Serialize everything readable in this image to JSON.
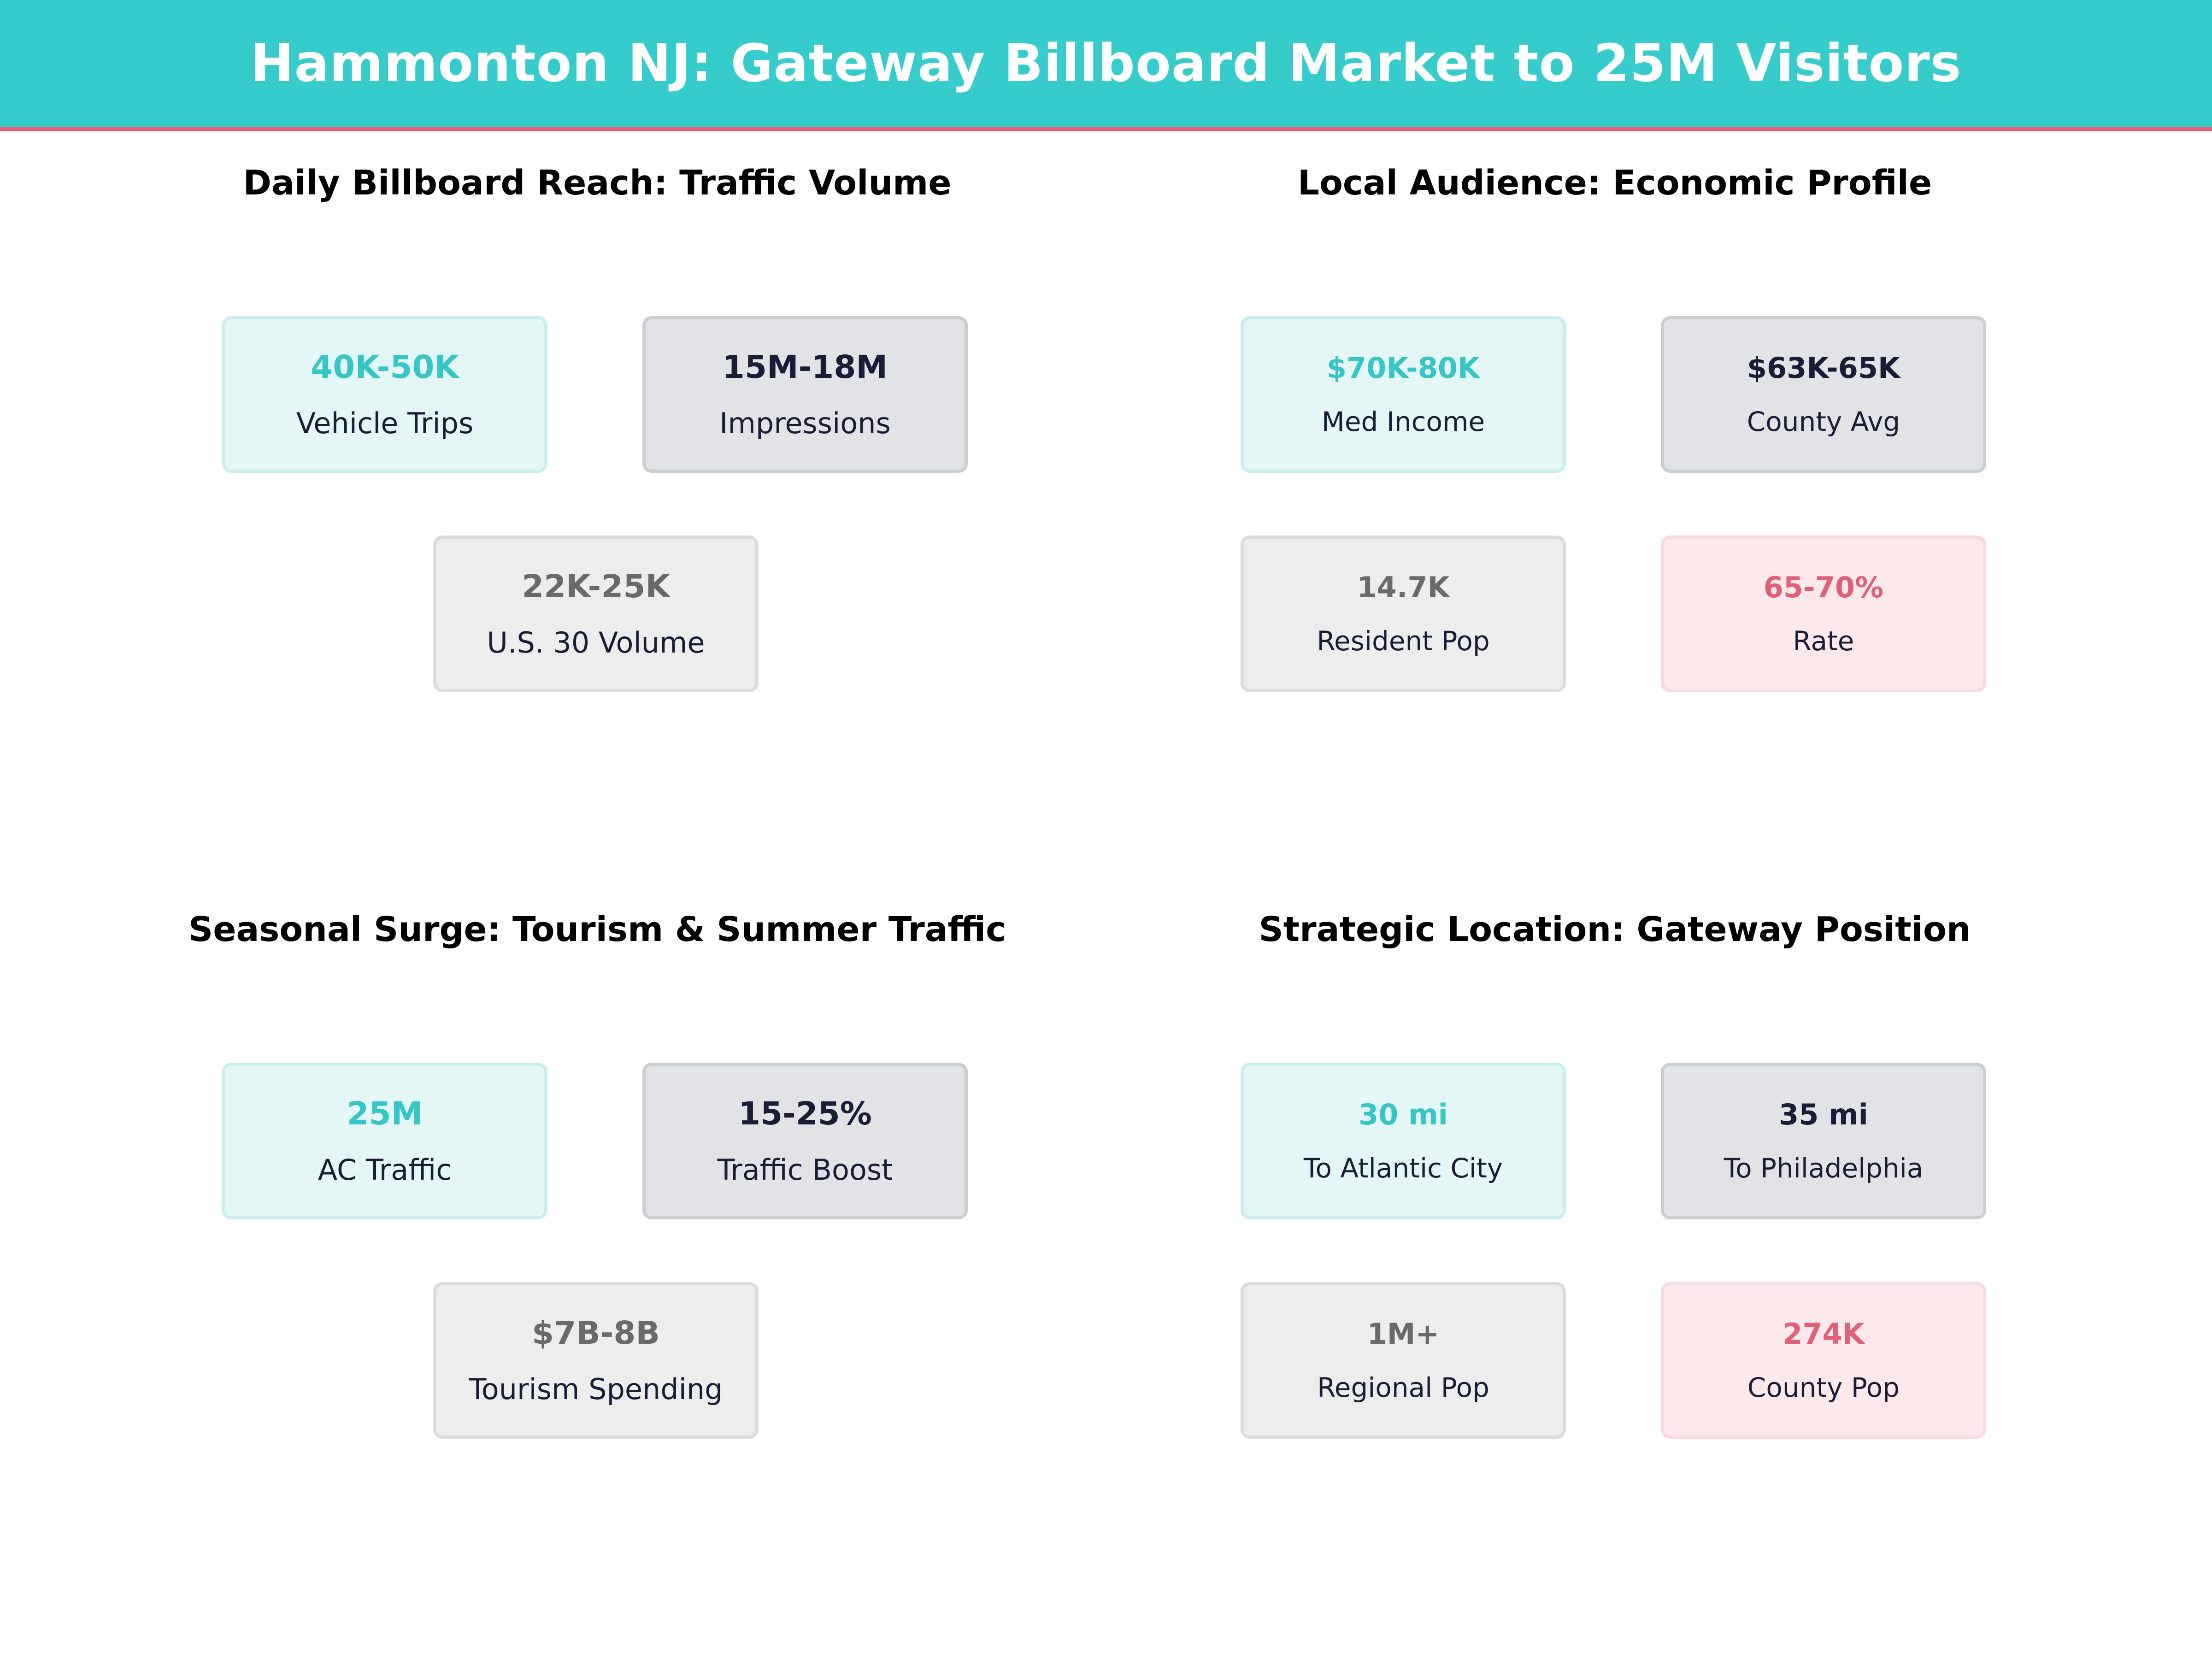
{
  "header": {
    "title": "Hammonton NJ: Gateway Billboard Market to 25M Visitors"
  },
  "colors": {
    "banner": "#36cccc",
    "banner_border": "#e0657d",
    "teal": "#36c6c6",
    "navy": "#1a1d36",
    "gray": "#6a6a6a",
    "pink": "#e0607a"
  },
  "panels": [
    {
      "title": "Daily Billboard Reach: Traffic Volume",
      "cards": [
        {
          "value": "40K-50K",
          "label": "Vehicle Trips"
        },
        {
          "value": "15M-18M",
          "label": "Impressions"
        },
        {
          "value": "22K-25K",
          "label": "U.S. 30  Volume"
        }
      ]
    },
    {
      "title": "Local Audience: Economic Profile",
      "cards": [
        {
          "value": "$70K-80K",
          "label": "Med Income"
        },
        {
          "value": "$63K-65K",
          "label": "County Avg"
        },
        {
          "value": "14.7K",
          "label": "Resident Pop"
        },
        {
          "value": "65-70%",
          "label": "Rate"
        }
      ]
    },
    {
      "title": "Seasonal Surge: Tourism & Summer Traffic",
      "cards": [
        {
          "value": "25M",
          "label": "AC Traffic"
        },
        {
          "value": "15-25%",
          "label": "Traffic Boost"
        },
        {
          "value": "$7B-8B",
          "label": "Tourism Spending"
        }
      ]
    },
    {
      "title": "Strategic Location: Gateway Position",
      "cards": [
        {
          "value": "30 mi",
          "label": "To Atlantic City"
        },
        {
          "value": "35 mi",
          "label": "To Philadelphia"
        },
        {
          "value": "1M+",
          "label": "Regional Pop"
        },
        {
          "value": "274K",
          "label": "County Pop"
        }
      ]
    }
  ]
}
